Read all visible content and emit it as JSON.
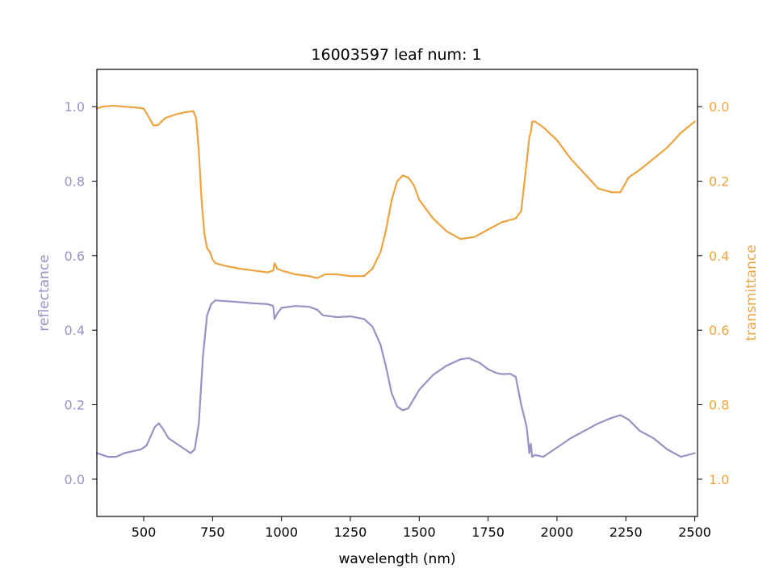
{
  "chart_data": {
    "type": "line",
    "title": "16003597 leaf num: 1",
    "xlabel": "wavelength (nm)",
    "xlim": [
      330,
      2510
    ],
    "xticks": [
      500,
      750,
      1000,
      1250,
      1500,
      1750,
      2000,
      2250,
      2500
    ],
    "xtick_labels": [
      "500",
      "750",
      "1000",
      "1250",
      "1500",
      "1750",
      "2000",
      "2250",
      "2500"
    ],
    "grid": false,
    "axes": {
      "left": {
        "label": "reflectance",
        "color": "#9891c4",
        "ylim": [
          -0.1,
          1.1
        ],
        "ticks": [
          0.0,
          0.2,
          0.4,
          0.6,
          0.8,
          1.0
        ],
        "tick_labels": [
          "0.0",
          "0.2",
          "0.4",
          "0.6",
          "0.8",
          "1.0"
        ],
        "inverted": false
      },
      "right": {
        "label": "transmittance",
        "color": "#eda33f",
        "ylim": [
          1.1,
          -0.1
        ],
        "ticks": [
          0.0,
          0.2,
          0.4,
          0.6,
          0.8,
          1.0
        ],
        "tick_labels": [
          "0.0",
          "0.2",
          "0.4",
          "0.6",
          "0.8",
          "1.0"
        ],
        "inverted": true
      }
    },
    "series": [
      {
        "axis": "left",
        "color": "#9891c4",
        "x": [
          330,
          350,
          370,
          400,
          430,
          460,
          490,
          510,
          525,
          540,
          555,
          570,
          590,
          610,
          630,
          650,
          670,
          685,
          700,
          715,
          730,
          745,
          760,
          800,
          850,
          900,
          950,
          970,
          975,
          985,
          1000,
          1050,
          1100,
          1130,
          1150,
          1200,
          1250,
          1300,
          1330,
          1360,
          1380,
          1400,
          1420,
          1440,
          1460,
          1480,
          1500,
          1550,
          1600,
          1650,
          1680,
          1720,
          1750,
          1780,
          1800,
          1830,
          1850,
          1870,
          1890,
          1900,
          1905,
          1910,
          1920,
          1950,
          2000,
          2050,
          2100,
          2150,
          2200,
          2230,
          2260,
          2300,
          2350,
          2400,
          2450,
          2500
        ],
        "y": [
          0.07,
          0.065,
          0.06,
          0.06,
          0.07,
          0.075,
          0.08,
          0.09,
          0.115,
          0.14,
          0.15,
          0.135,
          0.11,
          0.1,
          0.09,
          0.08,
          0.07,
          0.08,
          0.15,
          0.33,
          0.44,
          0.47,
          0.48,
          0.478,
          0.475,
          0.472,
          0.47,
          0.465,
          0.43,
          0.445,
          0.46,
          0.465,
          0.463,
          0.455,
          0.44,
          0.435,
          0.437,
          0.43,
          0.41,
          0.36,
          0.3,
          0.23,
          0.195,
          0.185,
          0.19,
          0.215,
          0.24,
          0.28,
          0.305,
          0.322,
          0.325,
          0.312,
          0.295,
          0.285,
          0.282,
          0.283,
          0.275,
          0.2,
          0.14,
          0.07,
          0.095,
          0.06,
          0.065,
          0.06,
          0.085,
          0.11,
          0.13,
          0.15,
          0.165,
          0.172,
          0.16,
          0.13,
          0.11,
          0.08,
          0.06,
          0.07
        ]
      },
      {
        "axis": "right",
        "color": "#eda33f",
        "x": [
          330,
          350,
          380,
          400,
          430,
          470,
          500,
          520,
          535,
          550,
          565,
          580,
          600,
          620,
          650,
          680,
          690,
          700,
          710,
          720,
          730,
          740,
          750,
          760,
          800,
          850,
          900,
          950,
          970,
          975,
          985,
          1000,
          1050,
          1100,
          1130,
          1160,
          1200,
          1250,
          1300,
          1330,
          1360,
          1380,
          1400,
          1420,
          1440,
          1460,
          1480,
          1500,
          1550,
          1600,
          1650,
          1700,
          1750,
          1800,
          1850,
          1870,
          1890,
          1900,
          1905,
          1910,
          1920,
          1950,
          2000,
          2050,
          2100,
          2150,
          2200,
          2230,
          2260,
          2300,
          2350,
          2400,
          2450,
          2500
        ],
        "y": [
          0.005,
          0.0,
          -0.002,
          -0.002,
          0.0,
          0.002,
          0.005,
          0.03,
          0.05,
          0.05,
          0.04,
          0.03,
          0.025,
          0.02,
          0.015,
          0.012,
          0.03,
          0.12,
          0.25,
          0.34,
          0.38,
          0.39,
          0.41,
          0.42,
          0.428,
          0.435,
          0.44,
          0.445,
          0.44,
          0.42,
          0.435,
          0.44,
          0.45,
          0.455,
          0.46,
          0.45,
          0.45,
          0.455,
          0.455,
          0.435,
          0.39,
          0.33,
          0.25,
          0.2,
          0.185,
          0.19,
          0.21,
          0.25,
          0.3,
          0.335,
          0.355,
          0.35,
          0.33,
          0.31,
          0.3,
          0.28,
          0.15,
          0.08,
          0.07,
          0.04,
          0.04,
          0.055,
          0.09,
          0.14,
          0.18,
          0.22,
          0.23,
          0.23,
          0.19,
          0.17,
          0.14,
          0.11,
          0.07,
          0.04
        ]
      }
    ]
  }
}
